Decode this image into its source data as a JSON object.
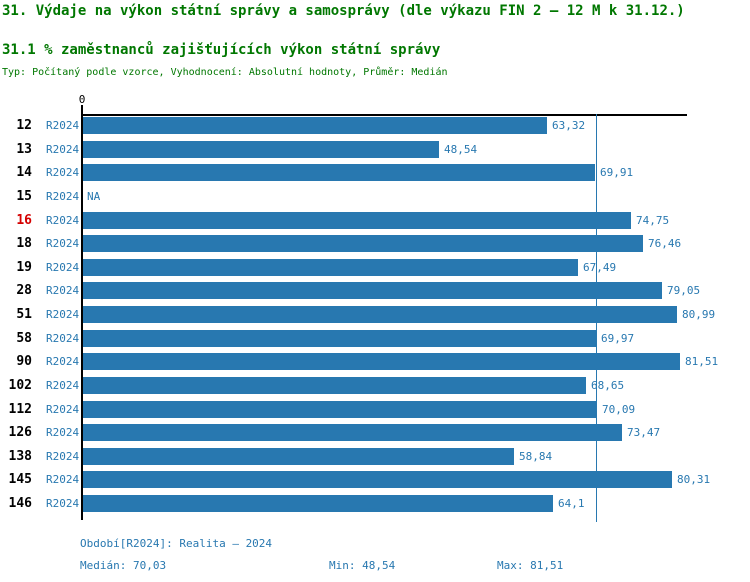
{
  "header": {
    "title": "31. Výdaje na výkon státní správy a samosprávy (dle výkazu FIN 2 – 12 M k 31.12.)",
    "subtitle": "31.1 % zaměstnanců zajišťujících výkon státní správy",
    "meta_line": "Typ: Počítaný podle vzorce, Vyhodnocení: Absolutní hodnoty, Průměr: Medián"
  },
  "colors": {
    "bar_blue": "#2878b0",
    "text_blue": "#2878b0",
    "title_green": "#007700",
    "highlight_red": "#d40000",
    "axis_black": "#000000"
  },
  "chart_data": {
    "type": "bar",
    "orientation": "horizontal",
    "title": "31.1 % zaměstnanců zajišťujících výkon státní správy",
    "zero_tick_label": "0",
    "xlim": [
      0,
      82.4
    ],
    "median_value": 70.03,
    "na_label": "NA",
    "grid": false,
    "legend_position": "none",
    "categories": [
      "12",
      "13",
      "14",
      "15",
      "16",
      "18",
      "19",
      "28",
      "51",
      "58",
      "90",
      "102",
      "112",
      "126",
      "138",
      "145",
      "146"
    ],
    "series": [
      {
        "name": "R2024",
        "values": [
          63.32,
          48.54,
          69.91,
          null,
          74.75,
          76.46,
          67.49,
          79.05,
          80.99,
          69.97,
          81.51,
          68.65,
          70.09,
          73.47,
          58.84,
          80.31,
          64.1
        ]
      }
    ],
    "rows": [
      {
        "id": "12",
        "period": "R2024",
        "value": 63.32,
        "display": "63,32",
        "highlight": false
      },
      {
        "id": "13",
        "period": "R2024",
        "value": 48.54,
        "display": "48,54",
        "highlight": false
      },
      {
        "id": "14",
        "period": "R2024",
        "value": 69.91,
        "display": "69,91",
        "highlight": false
      },
      {
        "id": "15",
        "period": "R2024",
        "value": null,
        "display": "NA",
        "highlight": false
      },
      {
        "id": "16",
        "period": "R2024",
        "value": 74.75,
        "display": "74,75",
        "highlight": true
      },
      {
        "id": "18",
        "period": "R2024",
        "value": 76.46,
        "display": "76,46",
        "highlight": false
      },
      {
        "id": "19",
        "period": "R2024",
        "value": 67.49,
        "display": "67,49",
        "highlight": false
      },
      {
        "id": "28",
        "period": "R2024",
        "value": 79.05,
        "display": "79,05",
        "highlight": false
      },
      {
        "id": "51",
        "period": "R2024",
        "value": 80.99,
        "display": "80,99",
        "highlight": false
      },
      {
        "id": "58",
        "period": "R2024",
        "value": 69.97,
        "display": "69,97",
        "highlight": false
      },
      {
        "id": "90",
        "period": "R2024",
        "value": 81.51,
        "display": "81,51",
        "highlight": false
      },
      {
        "id": "102",
        "period": "R2024",
        "value": 68.65,
        "display": "68,65",
        "highlight": false
      },
      {
        "id": "112",
        "period": "R2024",
        "value": 70.09,
        "display": "70,09",
        "highlight": false
      },
      {
        "id": "126",
        "period": "R2024",
        "value": 73.47,
        "display": "73,47",
        "highlight": false
      },
      {
        "id": "138",
        "period": "R2024",
        "value": 58.84,
        "display": "58,84",
        "highlight": false
      },
      {
        "id": "145",
        "period": "R2024",
        "value": 80.31,
        "display": "80,31",
        "highlight": false
      },
      {
        "id": "146",
        "period": "R2024",
        "value": 64.1,
        "display": "64,1",
        "highlight": false
      }
    ]
  },
  "footer": {
    "period_info": "Období[R2024]: Realita – 2024",
    "median": "Medián: 70,03",
    "min": "Min: 48,54",
    "max": "Max: 81,51"
  }
}
